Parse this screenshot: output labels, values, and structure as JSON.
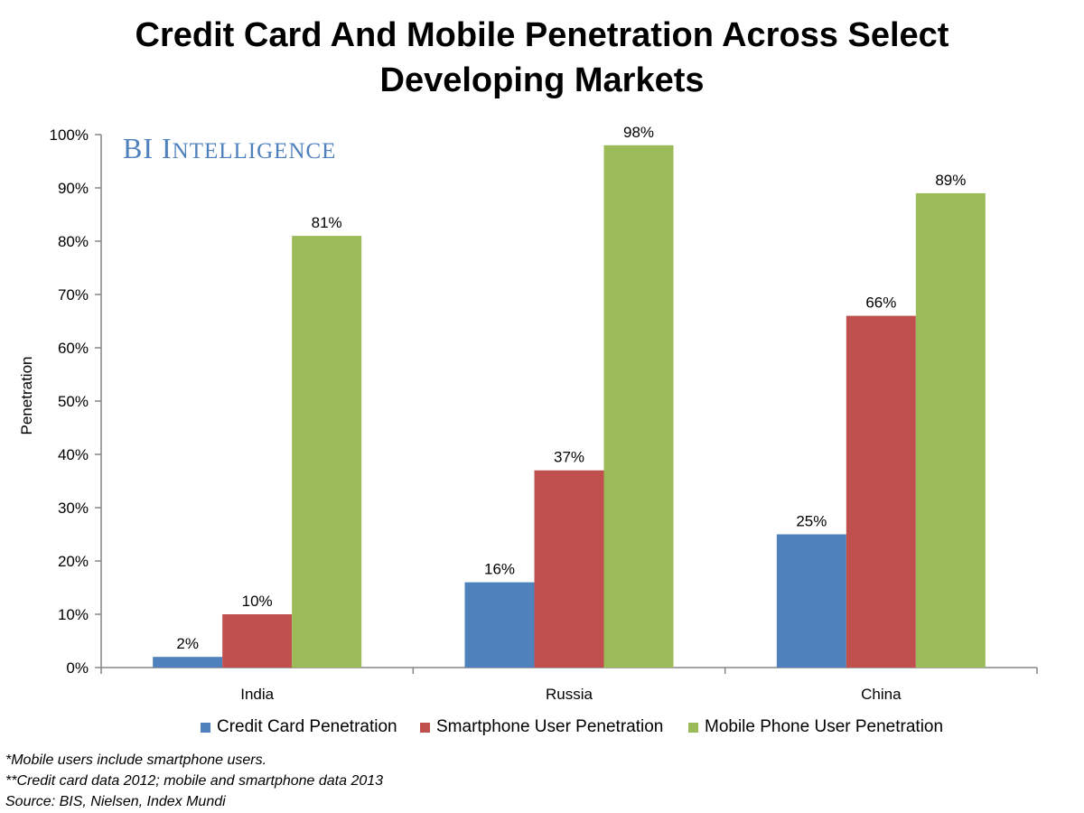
{
  "title_lines": [
    "Credit Card And Mobile Penetration Across Select",
    "Developing Markets"
  ],
  "logo": {
    "first": "BI",
    "second_cap": "I",
    "second_rest": "NTELLIGENCE"
  },
  "notes": [
    "*Mobile users include smartphone users.",
    "**Credit card data 2012; mobile and smartphone data 2013",
    "Source: BIS, Nielsen, Index Mundi"
  ],
  "colors": {
    "credit": "#4f81bd",
    "smartphone": "#c0504d",
    "mobile": "#9bbb59",
    "axis": "#868686"
  },
  "chart_data": {
    "type": "bar",
    "title": "Credit Card And Mobile Penetration Across Select Developing Markets",
    "ylabel": "Penetration",
    "xlabel": "",
    "categories": [
      "India",
      "Russia",
      "China"
    ],
    "ylim": [
      0,
      100
    ],
    "yticks": [
      "0%",
      "10%",
      "20%",
      "30%",
      "40%",
      "50%",
      "60%",
      "70%",
      "80%",
      "90%",
      "100%"
    ],
    "legend_position": "bottom",
    "grid": false,
    "series": [
      {
        "name": "Credit Card Penetration",
        "values": [
          2,
          16,
          25
        ],
        "labels": [
          "2%",
          "16%",
          "25%"
        ],
        "color": "#4f81bd"
      },
      {
        "name": "Smartphone User Penetration",
        "values": [
          10,
          37,
          66
        ],
        "labels": [
          "10%",
          "37%",
          "66%"
        ],
        "color": "#c0504d"
      },
      {
        "name": "Mobile Phone User Penetration",
        "values": [
          81,
          98,
          89
        ],
        "labels": [
          "81%",
          "98%",
          "89%"
        ],
        "color": "#9bbb59"
      }
    ]
  }
}
